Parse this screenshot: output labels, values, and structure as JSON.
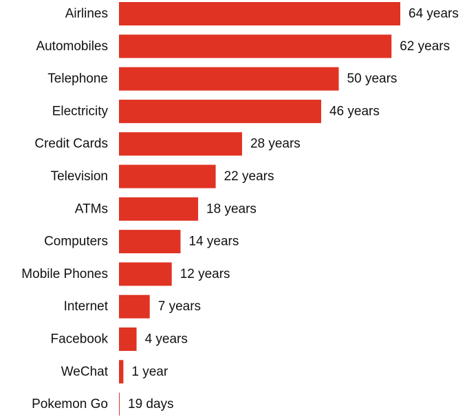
{
  "chart_data": {
    "type": "bar",
    "orientation": "horizontal",
    "title": "",
    "xlabel": "",
    "ylabel": "",
    "categories": [
      "Airlines",
      "Automobiles",
      "Telephone",
      "Electricity",
      "Credit Cards",
      "Television",
      "ATMs",
      "Computers",
      "Mobile Phones",
      "Internet",
      "Facebook",
      "WeChat",
      "Pokemon Go"
    ],
    "values": [
      64,
      62,
      50,
      46,
      28,
      22,
      18,
      14,
      12,
      7,
      4,
      1,
      0.052
    ],
    "value_labels": [
      "64 years",
      "62 years",
      "50 years",
      "46 years",
      "28 years",
      "22 years",
      "18 years",
      "14 years",
      "12 years",
      "7 years",
      "4 years",
      "1 year",
      "19 days"
    ],
    "unit": "years",
    "xlim": [
      0,
      64
    ],
    "grid": false,
    "legend": "none",
    "colors": {
      "bar": "#e03323",
      "text": "#111111",
      "background": "#ffffff"
    }
  }
}
